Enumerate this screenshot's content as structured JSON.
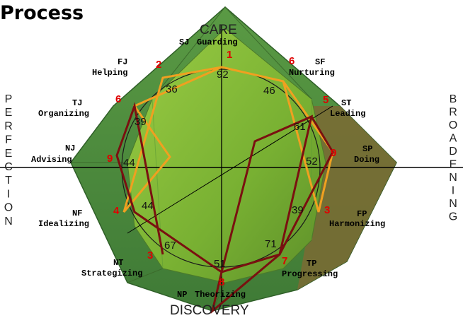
{
  "title": "Process",
  "axes": {
    "top": "CARE",
    "bottom": "DISCOVERY",
    "left": "PERFECTION",
    "right": "BROADENING"
  },
  "roles": [
    {
      "id": "sj",
      "code": "SJ",
      "name": "Guarding",
      "score": "92",
      "rank": "1"
    },
    {
      "id": "sf",
      "code": "SF",
      "name": "Nurturing",
      "score": "46",
      "rank": "6"
    },
    {
      "id": "st",
      "code": "ST",
      "name": "Leading",
      "score": "61",
      "rank": "5"
    },
    {
      "id": "sp",
      "code": "SP",
      "name": "Doing",
      "score": "52",
      "rank": "9"
    },
    {
      "id": "fp",
      "code": "FP",
      "name": "Harmonizing",
      "score": "39",
      "rank": "3"
    },
    {
      "id": "tp",
      "code": "TP",
      "name": "Progressing",
      "score": "71",
      "rank": "7"
    },
    {
      "id": "np",
      "code": "NP",
      "name": "Theorizing",
      "score": "51",
      "rank": "8"
    },
    {
      "id": "nt",
      "code": "NT",
      "name": "Strategizing",
      "score": "67",
      "rank": "3"
    },
    {
      "id": "nf",
      "code": "NF",
      "name": "Idealizing",
      "score": "44",
      "rank": "4"
    },
    {
      "id": "nj",
      "code": "NJ",
      "name": "Advising",
      "score": "44",
      "rank": "9"
    },
    {
      "id": "tj",
      "code": "TJ",
      "name": "Organizing",
      "score": "39",
      "rank": "6"
    },
    {
      "id": "fj",
      "code": "FJ",
      "name": "Helping",
      "score": "36",
      "rank": "2"
    }
  ],
  "colors": {
    "outer_shape": "#4a8a3c",
    "inner_shape": "#7fb83a",
    "right_shade": "#7b6a34",
    "orange_path": "#f0a020",
    "red_path": "#7a1010",
    "rank_color": "#e00000"
  }
}
